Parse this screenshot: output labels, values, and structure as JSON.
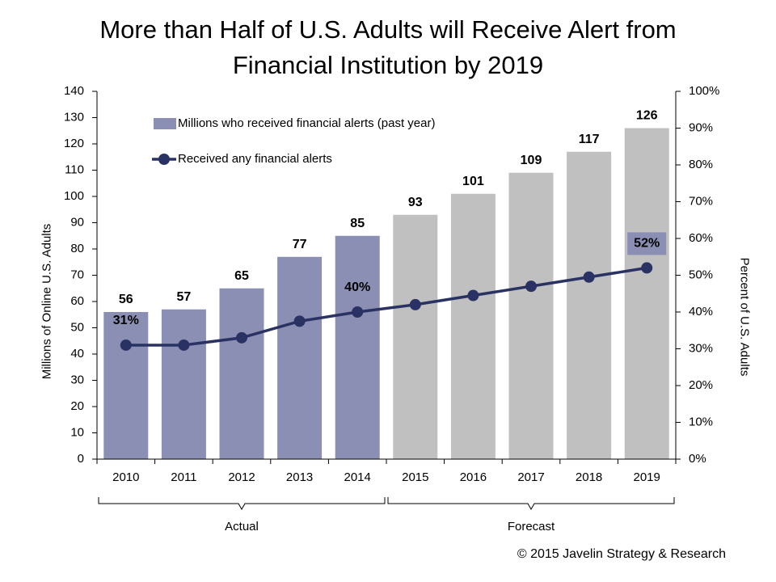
{
  "title_line1": "More than Half of U.S. Adults will Receive Alert from",
  "title_line2": "Financial Institution by 2019",
  "copyright": "© 2015 Javelin Strategy & Research",
  "colors": {
    "actual_bar": "#8a8fb3",
    "forecast_bar": "#c0c0c0",
    "line": "#2a3263",
    "pct_label_bg": "#8a8fb3"
  },
  "chart_data": {
    "type": "bar",
    "categories": [
      "2010",
      "2011",
      "2012",
      "2013",
      "2014",
      "2015",
      "2016",
      "2017",
      "2018",
      "2019"
    ],
    "series": [
      {
        "name": "Millions who received financial alerts (past year)",
        "type": "bar",
        "axis": "left",
        "values": [
          56,
          57,
          65,
          77,
          85,
          93,
          101,
          109,
          117,
          126
        ],
        "data_labels": [
          "56",
          "57",
          "65",
          "77",
          "85",
          "93",
          "101",
          "109",
          "117",
          "126"
        ]
      },
      {
        "name": "Received any financial alerts",
        "type": "line",
        "axis": "right",
        "values": [
          31,
          31,
          33,
          37.5,
          40,
          42,
          44.5,
          47,
          49.5,
          52
        ],
        "labeled_points": [
          {
            "index": 0,
            "label": "31%"
          },
          {
            "index": 4,
            "label": "40%"
          },
          {
            "index": 9,
            "label": "52%"
          }
        ]
      }
    ],
    "ylabel": "Millions of Online U.S. Adults",
    "y2label": "Percent of U.S. Adults",
    "ylim": [
      0,
      140
    ],
    "yticks": [
      "0",
      "10",
      "20",
      "30",
      "40",
      "50",
      "60",
      "70",
      "80",
      "90",
      "100",
      "110",
      "120",
      "130",
      "140"
    ],
    "y2lim": [
      0,
      100
    ],
    "y2ticks": [
      "0%",
      "10%",
      "20%",
      "30%",
      "40%",
      "50%",
      "60%",
      "70%",
      "80%",
      "90%",
      "100%"
    ],
    "groups": [
      {
        "label": "Actual",
        "from": 0,
        "to": 4
      },
      {
        "label": "Forecast",
        "from": 5,
        "to": 9
      }
    ],
    "grid": false,
    "legend_position": "top-left"
  }
}
